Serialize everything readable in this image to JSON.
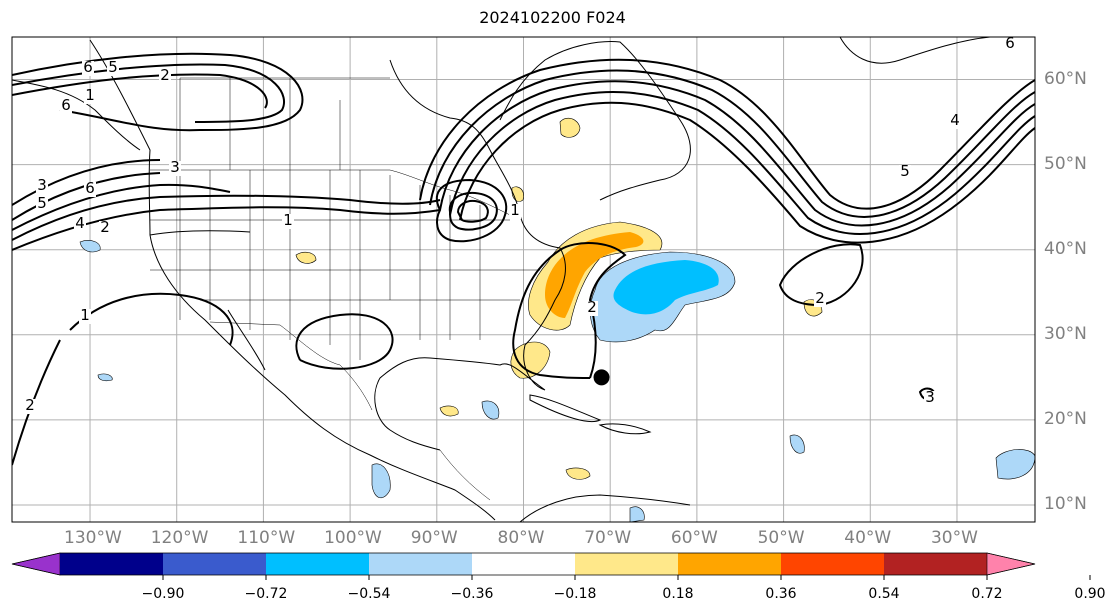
{
  "title": "2024102200 F024",
  "map": {
    "projection": "PlateCarree",
    "lon_range": [
      -139,
      -21
    ],
    "lat_range": [
      8,
      65
    ],
    "gridlines": true,
    "gridline_color": "#b0b0b0",
    "contour_color": "#000000",
    "storm_marker": {
      "lon": -71,
      "lat": 25,
      "color": "#000000"
    },
    "lon_labels": [
      "130°W",
      "120°W",
      "110°W",
      "100°W",
      "90°W",
      "80°W",
      "70°W",
      "60°W",
      "50°W",
      "40°W",
      "30°W"
    ],
    "lat_labels": [
      "60°N",
      "50°N",
      "40°N",
      "30°N",
      "20°N",
      "10°N"
    ],
    "contour_labels": [
      "6",
      "5",
      "2",
      "1",
      "3",
      "6",
      "5",
      "4",
      "2",
      "3",
      "1",
      "1",
      "2",
      "2",
      "1",
      "2",
      "3",
      "4",
      "5",
      "6",
      "6"
    ]
  },
  "colorbar": {
    "extend": "both",
    "ticks": [
      "−0.90",
      "−0.72",
      "−0.54",
      "−0.36",
      "−0.18",
      "0.18",
      "0.36",
      "0.54",
      "0.72",
      "0.90"
    ],
    "colors": [
      "#9932cc",
      "#00008b",
      "#3a5bcd",
      "#00bfff",
      "#add8f8",
      "#ffffff",
      "#ffe88a",
      "#ffa500",
      "#ff4500",
      "#b22222",
      "#ff82ab"
    ]
  }
}
